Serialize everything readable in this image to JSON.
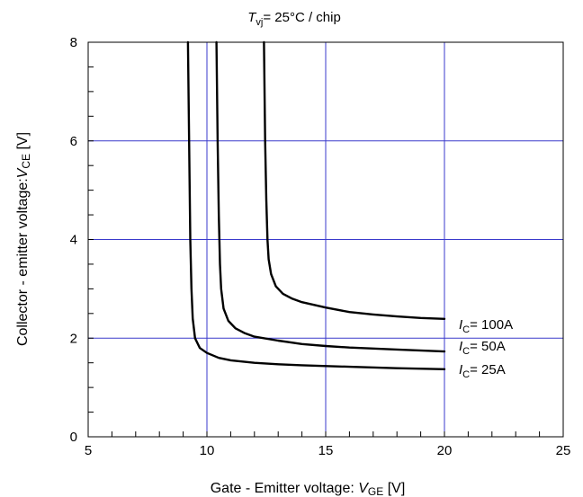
{
  "chart_data": {
    "type": "line",
    "title": {
      "var": "T",
      "sub": "vj",
      "rest": "= 25°C / chip"
    },
    "xlabel": {
      "pre": "Gate - Emitter voltage: ",
      "var": "V",
      "sub": "GE",
      "post": " [V]"
    },
    "ylabel": {
      "pre": "Collector - emitter voltage:",
      "var": "V",
      "sub": "CE",
      "post": " [V]"
    },
    "xlim": [
      5,
      25
    ],
    "ylim": [
      0,
      8
    ],
    "xticks": [
      5,
      10,
      15,
      20,
      25
    ],
    "yticks": [
      0,
      2,
      4,
      6,
      8
    ],
    "grid": true,
    "colors": {
      "grid": "#3a3acc",
      "line": "#000000"
    },
    "series": [
      {
        "name": "I_C= 25A",
        "label": {
          "var": "I",
          "sub": "C",
          "rest": "= 25A"
        },
        "x": [
          9.2,
          9.25,
          9.3,
          9.35,
          9.4,
          9.5,
          9.7,
          10.0,
          10.5,
          11.0,
          12.0,
          13.0,
          14.0,
          16.0,
          18.0,
          20.0
        ],
        "y": [
          8.0,
          6.0,
          4.0,
          3.0,
          2.4,
          2.0,
          1.8,
          1.7,
          1.6,
          1.55,
          1.5,
          1.47,
          1.45,
          1.42,
          1.39,
          1.37
        ]
      },
      {
        "name": "I_C= 50A",
        "label": {
          "var": "I",
          "sub": "C",
          "rest": "= 50A"
        },
        "x": [
          10.4,
          10.45,
          10.5,
          10.55,
          10.6,
          10.7,
          10.9,
          11.2,
          11.6,
          12.0,
          13.0,
          14.0,
          15.0,
          16.0,
          18.0,
          20.0
        ],
        "y": [
          8.0,
          6.0,
          4.5,
          3.5,
          3.0,
          2.6,
          2.35,
          2.2,
          2.1,
          2.03,
          1.95,
          1.88,
          1.84,
          1.81,
          1.77,
          1.73
        ]
      },
      {
        "name": "I_C= 100A",
        "label": {
          "var": "I",
          "sub": "C",
          "rest": "= 100A"
        },
        "x": [
          12.4,
          12.45,
          12.5,
          12.55,
          12.6,
          12.7,
          12.9,
          13.2,
          13.6,
          14.0,
          15.0,
          16.0,
          17.0,
          18.0,
          19.0,
          20.0
        ],
        "y": [
          8.0,
          6.0,
          4.8,
          4.0,
          3.6,
          3.3,
          3.05,
          2.9,
          2.8,
          2.73,
          2.62,
          2.53,
          2.48,
          2.44,
          2.41,
          2.39
        ]
      }
    ]
  }
}
